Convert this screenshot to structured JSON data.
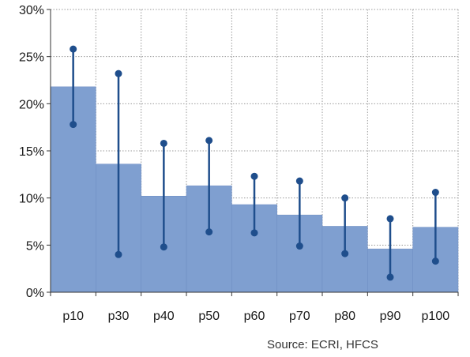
{
  "chart_data": {
    "type": "bar",
    "categories": [
      "p10",
      "p30",
      "p40",
      "p50",
      "p60",
      "p70",
      "p80",
      "p90",
      "p100"
    ],
    "series": [
      {
        "values": [
          21.8,
          13.6,
          10.2,
          11.3,
          9.3,
          8.2,
          7.0,
          4.6,
          6.9
        ]
      }
    ],
    "ranges": [
      {
        "high": 25.8,
        "low": 17.8
      },
      {
        "high": 23.2,
        "low": 4.0
      },
      {
        "high": 15.8,
        "low": 4.8
      },
      {
        "high": 16.1,
        "low": 6.4
      },
      {
        "high": 12.3,
        "low": 6.3
      },
      {
        "high": 11.8,
        "low": 4.9
      },
      {
        "high": 10.0,
        "low": 4.1
      },
      {
        "high": 7.8,
        "low": 1.6
      },
      {
        "high": 10.6,
        "low": 3.3
      }
    ],
    "ylim": [
      0,
      30
    ],
    "yticks": [
      0,
      5,
      10,
      15,
      20,
      25,
      30
    ],
    "ytick_labels": [
      "0%",
      "5%",
      "10%",
      "15%",
      "20%",
      "25%",
      "30%"
    ],
    "grid": true,
    "colors": {
      "bar": "#7f9fd0",
      "bar_edge": "#6c8cc2",
      "range": "#1f4e8c",
      "grid": "#9a9a9a",
      "axis": "#333333"
    }
  },
  "source_note": "Source: ECRI, HFCS"
}
